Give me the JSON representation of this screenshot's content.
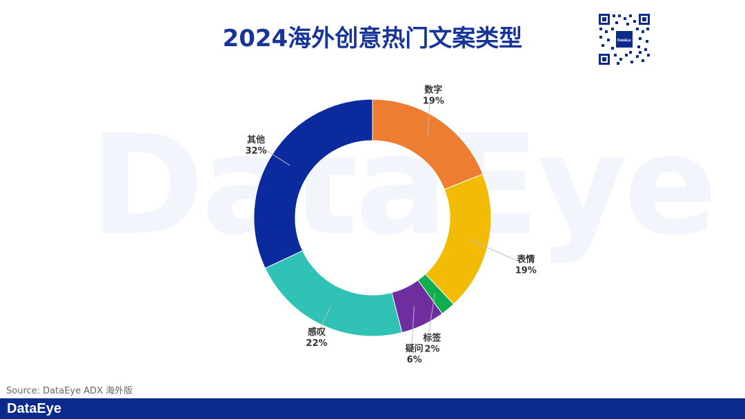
{
  "header": {
    "title": "2024海外创意热门文案类型"
  },
  "watermark": "DataEye",
  "qr": {
    "icon": "qr-code-icon",
    "badge": "DataEye"
  },
  "chart_data": {
    "type": "pie",
    "style": "donut",
    "title": "2024海外创意热门文案类型",
    "categories": [
      "数字",
      "表情",
      "标签",
      "疑问",
      "感叹",
      "其他"
    ],
    "values": [
      19,
      19,
      2,
      6,
      22,
      32
    ],
    "value_labels": [
      "19%",
      "19%",
      "2%",
      "6%",
      "22%",
      "32%"
    ],
    "colors": [
      "#ED7D31",
      "#F2BB05",
      "#0FAE4F",
      "#6E2EA0",
      "#30C3B5",
      "#0B2A9E"
    ],
    "start_angle": "12 o'clock, clockwise",
    "legend": "none (labels on leader lines)"
  },
  "source": "Source: DataEye ADX 海外版",
  "footer": {
    "brand": "DataEye"
  }
}
